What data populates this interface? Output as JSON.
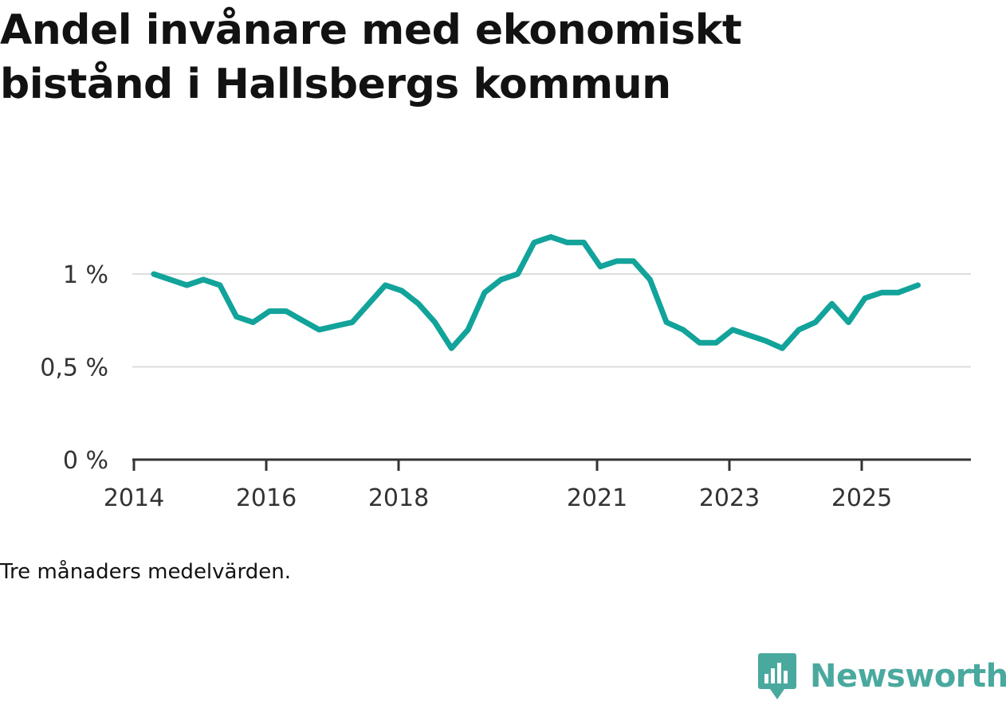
{
  "title": "Andel invånare med ekonomiskt bistånd i Hallsbergs kommun",
  "caption": "Tre månaders medelvärden.",
  "brand": {
    "name": "Newsworthy",
    "icon": "newsworthy-logo-icon",
    "color": "#4aa99f"
  },
  "colors": {
    "line": "#12a39a",
    "grid": "#dddddd",
    "axis": "#333333"
  },
  "chart_data": {
    "type": "line",
    "title": "Andel invånare med ekonomiskt bistånd i Hallsbergs kommun",
    "xlabel": "",
    "ylabel": "",
    "unit": "%",
    "xlim": [
      2013.7,
      2026.5
    ],
    "ylim": [
      0,
      1.0
    ],
    "grid": true,
    "legend": "none",
    "yticks": [
      {
        "value": 0,
        "label": "0 %"
      },
      {
        "value": 0.5,
        "label": "0,5 %"
      },
      {
        "value": 1.0,
        "label": "1 %"
      }
    ],
    "xticks": [
      {
        "value": 2014,
        "label": "2014"
      },
      {
        "value": 2016,
        "label": "2016"
      },
      {
        "value": 2018,
        "label": "2018"
      },
      {
        "value": 2021,
        "label": "2021"
      },
      {
        "value": 2023,
        "label": "2023"
      },
      {
        "value": 2025,
        "label": "2025"
      }
    ],
    "series": [
      {
        "name": "Andel invånare med ekonomiskt bistånd",
        "x": [
          2014.3,
          2014.55,
          2014.8,
          2015.05,
          2015.3,
          2015.55,
          2015.8,
          2016.05,
          2016.3,
          2016.55,
          2016.8,
          2017.05,
          2017.3,
          2017.55,
          2017.8,
          2018.05,
          2018.3,
          2018.55,
          2018.8,
          2019.05,
          2019.3,
          2019.55,
          2019.8,
          2020.05,
          2020.3,
          2020.55,
          2020.8,
          2021.05,
          2021.3,
          2021.55,
          2021.8,
          2022.05,
          2022.3,
          2022.55,
          2022.8,
          2023.05,
          2023.3,
          2023.55,
          2023.8,
          2024.05,
          2024.3,
          2024.55,
          2024.8,
          2025.05,
          2025.3,
          2025.55,
          2025.85
        ],
        "values": [
          1.0,
          0.97,
          0.94,
          0.97,
          0.94,
          0.77,
          0.74,
          0.8,
          0.8,
          0.75,
          0.7,
          0.72,
          0.74,
          0.84,
          0.94,
          0.91,
          0.84,
          0.74,
          0.6,
          0.7,
          0.9,
          0.97,
          1.0,
          1.17,
          1.2,
          1.17,
          1.17,
          1.04,
          1.07,
          1.07,
          0.97,
          0.74,
          0.7,
          0.63,
          0.63,
          0.7,
          0.67,
          0.64,
          0.6,
          0.7,
          0.74,
          0.84,
          0.74,
          0.87,
          0.9,
          0.9,
          0.94
        ]
      }
    ]
  }
}
